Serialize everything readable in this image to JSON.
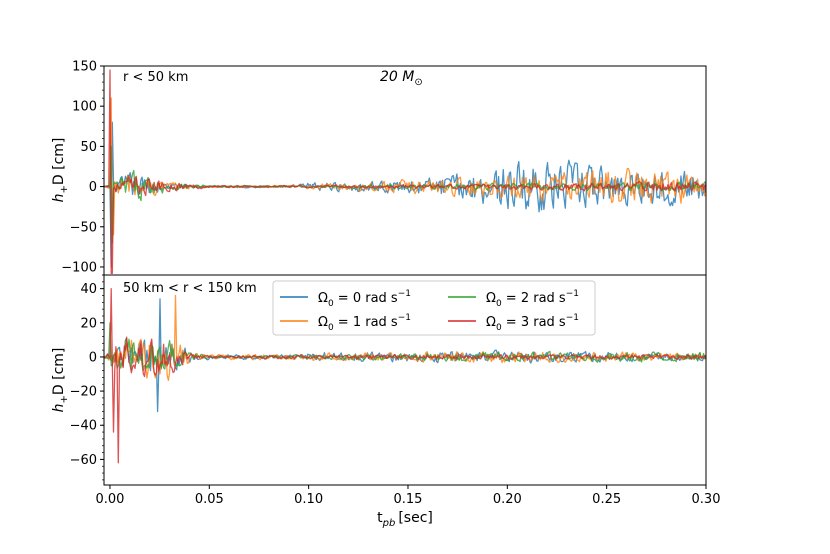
{
  "chart_data": [
    {
      "type": "line",
      "panel": "top",
      "annotation": "r < 50 km",
      "title": "20 M",
      "title_sub": "⊙",
      "ylabel": "h",
      "ylabel_sub": "+",
      "ylabel_rest": "D [cm]",
      "xlim": [
        -0.003,
        0.3
      ],
      "ylim": [
        -110,
        150
      ],
      "yticks": [
        -100,
        -50,
        0,
        50,
        100,
        150
      ],
      "ytick_labels": [
        "−100",
        "−50",
        "0",
        "50",
        "100",
        "150"
      ],
      "series": [
        {
          "name": "Ω0 = 0 rad s−1",
          "color": "#1f77b4",
          "envelope": [
            [
              0.0,
              5
            ],
            [
              0.01,
              25
            ],
            [
              0.03,
              6
            ],
            [
              0.05,
              2
            ],
            [
              0.09,
              2
            ],
            [
              0.1,
              7
            ],
            [
              0.15,
              12
            ],
            [
              0.18,
              25
            ],
            [
              0.2,
              45
            ],
            [
              0.22,
              45
            ],
            [
              0.25,
              35
            ],
            [
              0.28,
              30
            ],
            [
              0.3,
              25
            ]
          ],
          "peak": [
            [
              0.0005,
              -100
            ],
            [
              0.001,
              80
            ]
          ]
        },
        {
          "name": "Ω0 = 1 rad s−1",
          "color": "#ff7f0e",
          "envelope": [
            [
              0.0,
              5
            ],
            [
              0.01,
              30
            ],
            [
              0.03,
              8
            ],
            [
              0.05,
              2
            ],
            [
              0.09,
              2
            ],
            [
              0.1,
              4
            ],
            [
              0.15,
              12
            ],
            [
              0.2,
              20
            ],
            [
              0.25,
              30
            ],
            [
              0.3,
              30
            ]
          ],
          "peak": [
            [
              0.0008,
              110
            ],
            [
              0.0015,
              -60
            ]
          ]
        },
        {
          "name": "Ω0 = 2 rad s−1",
          "color": "#2ca02c",
          "envelope": [
            [
              0.0,
              5
            ],
            [
              0.01,
              28
            ],
            [
              0.03,
              8
            ],
            [
              0.05,
              2
            ],
            [
              0.1,
              2
            ],
            [
              0.15,
              4
            ],
            [
              0.2,
              6
            ],
            [
              0.25,
              8
            ],
            [
              0.3,
              8
            ]
          ],
          "peak": [
            [
              0.0006,
              50
            ],
            [
              0.0012,
              -70
            ]
          ]
        },
        {
          "name": "Ω0 = 3 rad s−1",
          "color": "#d62728",
          "envelope": [
            [
              0.0,
              5
            ],
            [
              0.01,
              20
            ],
            [
              0.03,
              8
            ],
            [
              0.05,
              2
            ],
            [
              0.1,
              2
            ],
            [
              0.15,
              3
            ],
            [
              0.2,
              5
            ],
            [
              0.25,
              8
            ],
            [
              0.3,
              10
            ]
          ],
          "peak": [
            [
              0.0003,
              145
            ],
            [
              0.0009,
              -108
            ]
          ]
        }
      ]
    },
    {
      "type": "line",
      "panel": "bottom",
      "annotation": "50 km < r < 150 km",
      "xlabel": "t",
      "xlabel_sub": "pb",
      "xlabel_rest": "[sec]",
      "ylabel": "h",
      "ylabel_sub": "+",
      "ylabel_rest": "D [cm]",
      "xlim": [
        -0.003,
        0.3
      ],
      "ylim": [
        -75,
        48
      ],
      "xticks": [
        0.0,
        0.05,
        0.1,
        0.15,
        0.2,
        0.25,
        0.3
      ],
      "xtick_labels": [
        "0.00",
        "0.05",
        "0.10",
        "0.15",
        "0.20",
        "0.25",
        "0.30"
      ],
      "yticks": [
        -60,
        -40,
        -20,
        0,
        20,
        40
      ],
      "ytick_labels": [
        "−60",
        "−40",
        "−20",
        "0",
        "20",
        "40"
      ],
      "series": [
        {
          "name": "Ω0 = 0 rad s−1",
          "color": "#1f77b4",
          "envelope": [
            [
              0.0,
              4
            ],
            [
              0.01,
              14
            ],
            [
              0.03,
              18
            ],
            [
              0.04,
              5
            ],
            [
              0.05,
              2
            ],
            [
              0.09,
              2
            ],
            [
              0.1,
              4
            ],
            [
              0.2,
              5
            ],
            [
              0.3,
              3
            ]
          ],
          "peak": [
            [
              0.024,
              -32
            ],
            [
              0.025,
              34
            ]
          ]
        },
        {
          "name": "Ω0 = 1 rad s−1",
          "color": "#ff7f0e",
          "envelope": [
            [
              0.0,
              6
            ],
            [
              0.01,
              18
            ],
            [
              0.03,
              20
            ],
            [
              0.04,
              5
            ],
            [
              0.05,
              2
            ],
            [
              0.1,
              3
            ],
            [
              0.2,
              5
            ],
            [
              0.3,
              3
            ]
          ],
          "peak": [
            [
              0.033,
              36
            ]
          ]
        },
        {
          "name": "Ω0 = 2 rad s−1",
          "color": "#2ca02c",
          "envelope": [
            [
              0.0,
              14
            ],
            [
              0.01,
              16
            ],
            [
              0.03,
              14
            ],
            [
              0.04,
              4
            ],
            [
              0.05,
              1
            ],
            [
              0.1,
              2
            ],
            [
              0.2,
              4
            ],
            [
              0.3,
              4
            ]
          ],
          "peak": [
            [
              0.0,
              20
            ]
          ]
        },
        {
          "name": "Ω0 = 3 rad s−1",
          "color": "#d62728",
          "envelope": [
            [
              0.0,
              25
            ],
            [
              0.01,
              20
            ],
            [
              0.03,
              14
            ],
            [
              0.04,
              3
            ],
            [
              0.05,
              1
            ],
            [
              0.1,
              2
            ],
            [
              0.2,
              2
            ],
            [
              0.3,
              2
            ]
          ],
          "peak": [
            [
              0.0005,
              40
            ],
            [
              0.002,
              -44
            ],
            [
              0.004,
              -62
            ]
          ]
        }
      ],
      "legend": {
        "placement": "top-center",
        "entries": [
          {
            "prefix": "Ω",
            "sub": "0",
            "mid": " = 0 rad s",
            "sup": "−1",
            "color": "#1f77b4"
          },
          {
            "prefix": "Ω",
            "sub": "0",
            "mid": " = 1 rad s",
            "sup": "−1",
            "color": "#ff7f0e"
          },
          {
            "prefix": "Ω",
            "sub": "0",
            "mid": " = 2 rad s",
            "sup": "−1",
            "color": "#2ca02c"
          },
          {
            "prefix": "Ω",
            "sub": "0",
            "mid": " = 3 rad s",
            "sup": "−1",
            "color": "#d62728"
          }
        ]
      }
    }
  ]
}
